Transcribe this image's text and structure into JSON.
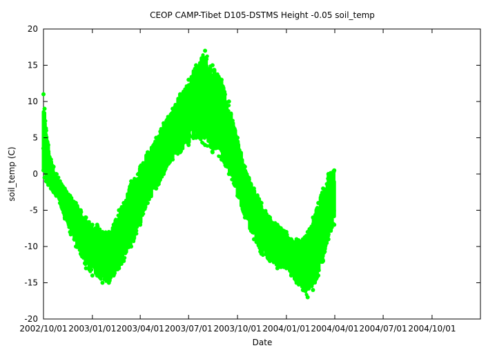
{
  "chart_data": {
    "type": "scatter",
    "title": "CEOP CAMP-Tibet D105-DSTMS Height -0.05 soil_temp",
    "xlabel": "Date",
    "ylabel": "soil_temp (C)",
    "xlim": [
      "2002-10-01",
      "2004-12-31"
    ],
    "ylim": [
      -20,
      20
    ],
    "xticks": [
      "2002/10/01",
      "2003/01/01",
      "2003/04/01",
      "2003/07/01",
      "2003/10/01",
      "2004/01/01",
      "2004/04/01",
      "2004/07/01",
      "2004/10/01"
    ],
    "yticks": [
      -20,
      -15,
      -10,
      -5,
      0,
      5,
      10,
      15,
      20
    ],
    "grid": false,
    "legend": "none",
    "color": "#00ff00",
    "series": [
      {
        "x": [
          "2002-10-01",
          "2002-10-03",
          "2002-10-06",
          "2002-10-10",
          "2002-10-15",
          "2002-10-20",
          "2002-10-25",
          "2002-11-01",
          "2002-11-10",
          "2002-11-20",
          "2002-12-01",
          "2002-12-10",
          "2002-12-20",
          "2003-01-01",
          "2003-01-10",
          "2003-01-20",
          "2003-02-01",
          "2003-02-10",
          "2003-02-20",
          "2003-03-01",
          "2003-03-15",
          "2003-04-01",
          "2003-04-15",
          "2003-05-01",
          "2003-05-15",
          "2003-06-01",
          "2003-06-15",
          "2003-07-01",
          "2003-07-15",
          "2003-08-01",
          "2003-08-15",
          "2003-09-01",
          "2003-09-15",
          "2003-10-01",
          "2003-10-15",
          "2003-11-01",
          "2003-11-15",
          "2003-12-01",
          "2003-12-15",
          "2004-01-01",
          "2004-01-10",
          "2004-01-20",
          "2004-02-01",
          "2004-02-10",
          "2004-02-20",
          "2004-03-01",
          "2004-03-10",
          "2004-03-20",
          "2004-03-31"
        ],
        "min": [
          0.5,
          -0.5,
          -1,
          -1.5,
          -2,
          -2.5,
          -3,
          -4,
          -6,
          -8,
          -10,
          -11,
          -13,
          -14,
          -14,
          -15,
          -15,
          -14,
          -13,
          -12,
          -10,
          -7,
          -4,
          -2,
          0,
          2,
          3,
          4,
          5,
          4,
          3,
          2,
          0,
          -3,
          -6,
          -9,
          -11,
          -12,
          -13,
          -13,
          -14,
          -15,
          -16,
          -17,
          -16,
          -14,
          -12,
          -9,
          -7
        ],
        "max": [
          11,
          9,
          6,
          4,
          2,
          1,
          0,
          -1,
          -2,
          -3,
          -4,
          -5,
          -6,
          -7,
          -7,
          -8,
          -8,
          -7,
          -5,
          -4,
          -1,
          1,
          3,
          5,
          7,
          9,
          11,
          13,
          15,
          17,
          15,
          13,
          10,
          5,
          1,
          -2,
          -4,
          -6,
          -7,
          -8,
          -9,
          -9,
          -9,
          -8,
          -6,
          -4,
          -2,
          0,
          0.5
        ]
      }
    ]
  }
}
